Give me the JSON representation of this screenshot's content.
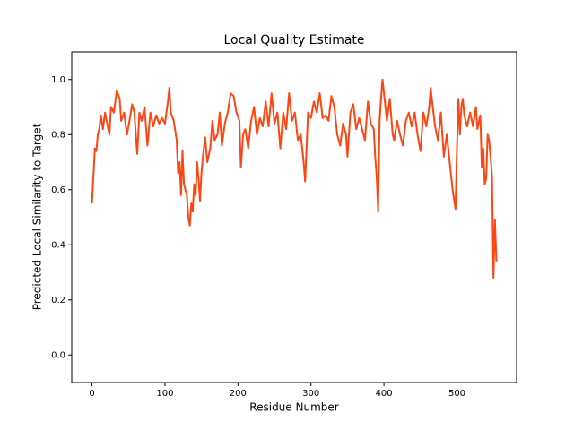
{
  "chart_data": {
    "type": "line",
    "title": "Local Quality Estimate",
    "xlabel": "Residue Number",
    "ylabel": "Predicted Local Similarity to Target",
    "x": [
      0,
      2,
      4,
      6,
      8,
      10,
      12,
      15,
      18,
      20,
      24,
      26,
      30,
      34,
      38,
      40,
      44,
      48,
      52,
      55,
      58,
      62,
      65,
      68,
      72,
      76,
      80,
      84,
      88,
      92,
      96,
      100,
      104,
      106,
      108,
      112,
      116,
      118,
      120,
      122,
      124,
      126,
      128,
      130,
      132,
      134,
      136,
      138,
      140,
      142,
      144,
      146,
      148,
      150,
      152,
      155,
      158,
      162,
      165,
      168,
      172,
      175,
      178,
      182,
      186,
      190,
      194,
      198,
      202,
      204,
      207,
      210,
      214,
      218,
      222,
      226,
      230,
      234,
      238,
      242,
      246,
      250,
      254,
      258,
      262,
      266,
      270,
      274,
      278,
      282,
      286,
      290,
      292,
      296,
      300,
      304,
      308,
      312,
      316,
      320,
      324,
      328,
      332,
      336,
      340,
      344,
      348,
      350,
      354,
      358,
      362,
      366,
      370,
      374,
      378,
      382,
      386,
      388,
      390,
      392,
      394,
      396,
      398,
      400,
      404,
      408,
      412,
      414,
      418,
      422,
      426,
      430,
      434,
      438,
      442,
      446,
      450,
      454,
      458,
      462,
      464,
      466,
      470,
      474,
      478,
      482,
      486,
      490,
      494,
      498,
      500,
      502,
      504,
      506,
      508,
      510,
      514,
      518,
      522,
      526,
      528,
      532,
      534,
      536,
      538,
      540,
      542,
      544,
      546,
      548,
      550,
      552,
      554
    ],
    "values": [
      0.55,
      0.65,
      0.75,
      0.74,
      0.8,
      0.82,
      0.87,
      0.82,
      0.88,
      0.85,
      0.8,
      0.9,
      0.88,
      0.96,
      0.93,
      0.85,
      0.88,
      0.8,
      0.86,
      0.91,
      0.88,
      0.73,
      0.88,
      0.85,
      0.9,
      0.76,
      0.88,
      0.83,
      0.87,
      0.84,
      0.86,
      0.84,
      0.92,
      0.97,
      0.88,
      0.85,
      0.78,
      0.66,
      0.7,
      0.58,
      0.74,
      0.62,
      0.6,
      0.58,
      0.5,
      0.47,
      0.55,
      0.52,
      0.62,
      0.58,
      0.7,
      0.64,
      0.56,
      0.66,
      0.72,
      0.79,
      0.7,
      0.75,
      0.85,
      0.78,
      0.8,
      0.88,
      0.76,
      0.84,
      0.88,
      0.95,
      0.94,
      0.88,
      0.85,
      0.68,
      0.8,
      0.82,
      0.75,
      0.85,
      0.9,
      0.8,
      0.86,
      0.83,
      0.92,
      0.83,
      0.95,
      0.84,
      0.88,
      0.75,
      0.88,
      0.82,
      0.95,
      0.85,
      0.88,
      0.78,
      0.8,
      0.7,
      0.63,
      0.88,
      0.86,
      0.92,
      0.88,
      0.95,
      0.86,
      0.87,
      0.85,
      0.94,
      0.9,
      0.8,
      0.76,
      0.84,
      0.8,
      0.72,
      0.88,
      0.91,
      0.82,
      0.86,
      0.82,
      0.78,
      0.92,
      0.84,
      0.82,
      0.72,
      0.65,
      0.52,
      0.85,
      0.93,
      1.0,
      0.95,
      0.85,
      0.93,
      0.8,
      0.78,
      0.85,
      0.8,
      0.76,
      0.85,
      0.88,
      0.83,
      0.88,
      0.8,
      0.74,
      0.88,
      0.83,
      0.9,
      0.97,
      0.92,
      0.83,
      0.78,
      0.88,
      0.72,
      0.8,
      0.7,
      0.6,
      0.53,
      0.75,
      0.93,
      0.8,
      0.9,
      0.93,
      0.87,
      0.83,
      0.88,
      0.83,
      0.9,
      0.82,
      0.87,
      0.68,
      0.75,
      0.62,
      0.64,
      0.8,
      0.78,
      0.72,
      0.65,
      0.28,
      0.49,
      0.34
    ],
    "color": "#ff4512",
    "xlim": [
      -27.7,
      581.7
    ],
    "ylim": [
      -0.1,
      1.1
    ],
    "xticks": [
      0,
      100,
      200,
      300,
      400,
      500
    ],
    "yticks": [
      {
        "value": 0,
        "label": "0.0"
      },
      0.2,
      0.4,
      0.6,
      0.8,
      {
        "value": 1,
        "label": "1.0"
      }
    ]
  }
}
